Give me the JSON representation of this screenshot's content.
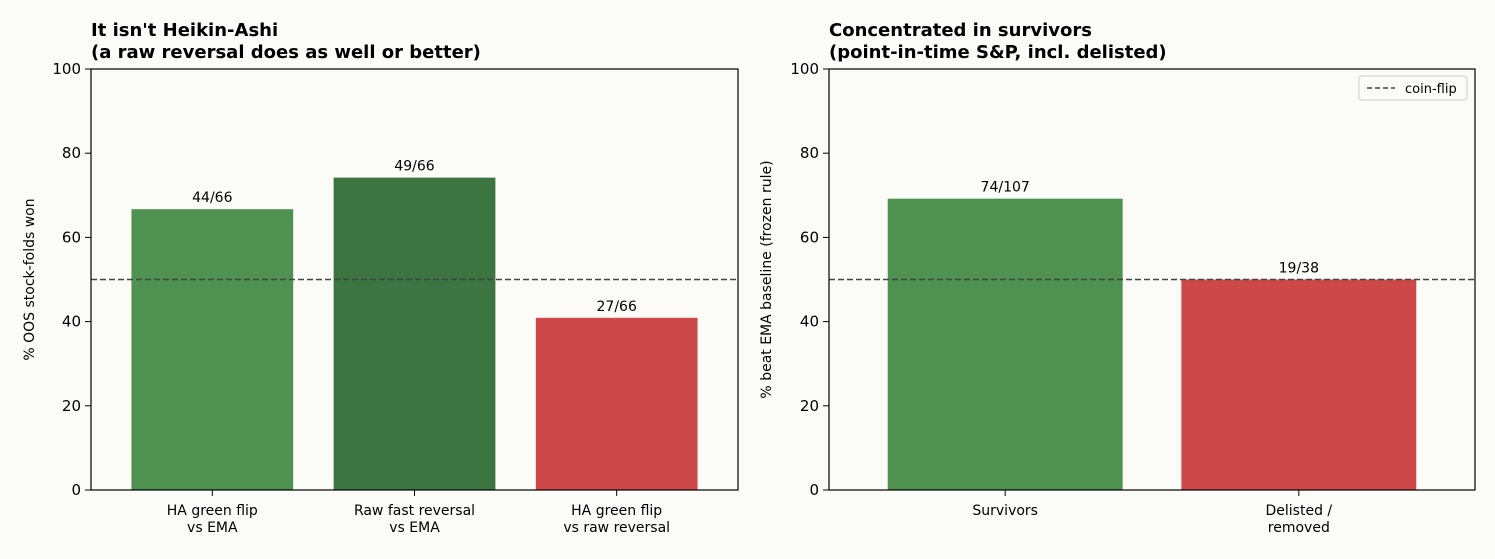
{
  "colors": {
    "green": "#4e9150",
    "dark_green": "#3c7542",
    "red": "#cd4848",
    "reference_line": "#444444",
    "background": "#fbfbf7"
  },
  "chart_data": [
    {
      "type": "bar",
      "title_lines": [
        "It isn't Heikin-Ashi",
        "(a raw reversal does as well or better)"
      ],
      "xlabel": "",
      "ylabel": "% OOS stock-folds won",
      "ylim": [
        0,
        100
      ],
      "yticks": [
        "0",
        "20",
        "40",
        "60",
        "80",
        "100"
      ],
      "categories": [
        [
          "HA green flip",
          "vs EMA"
        ],
        [
          "Raw fast reversal",
          "vs EMA"
        ],
        [
          "HA green flip",
          "vs raw reversal"
        ]
      ],
      "values": [
        66.7,
        74.2,
        40.9
      ],
      "bar_labels": [
        "44/66",
        "49/66",
        "27/66"
      ],
      "bar_colors": [
        "#4e9150",
        "#3c7542",
        "#cd4848"
      ],
      "reference_line": {
        "y": 50,
        "style": "dashed"
      },
      "legend": null
    },
    {
      "type": "bar",
      "title_lines": [
        "Concentrated in survivors",
        "(point-in-time S&P, incl. delisted)"
      ],
      "xlabel": "",
      "ylabel": "% beat EMA baseline (frozen rule)",
      "ylim": [
        0,
        100
      ],
      "yticks": [
        "0",
        "20",
        "40",
        "60",
        "80",
        "100"
      ],
      "categories": [
        [
          "Survivors"
        ],
        [
          "Delisted /",
          "removed"
        ]
      ],
      "values": [
        69.2,
        50.0
      ],
      "bar_labels": [
        "74/107",
        "19/38"
      ],
      "bar_colors": [
        "#4e9150",
        "#cd4848"
      ],
      "reference_line": {
        "y": 50,
        "style": "dashed"
      },
      "legend": {
        "placement": "top-right",
        "entries": [
          "coin-flip"
        ]
      }
    }
  ]
}
